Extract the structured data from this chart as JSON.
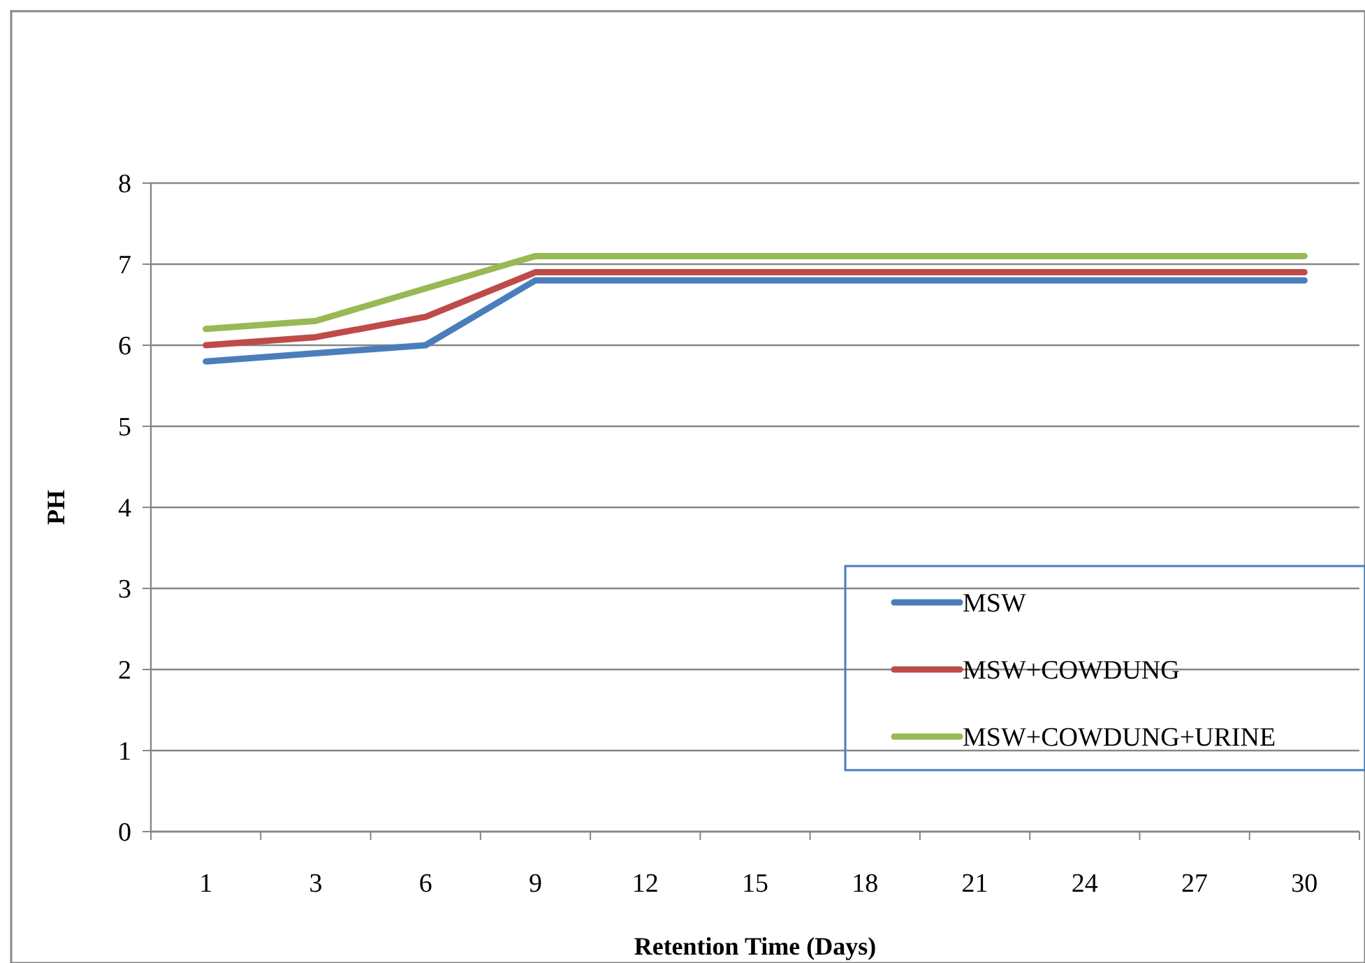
{
  "chart_data": {
    "type": "line",
    "xlabel": "Retention Time (Days)",
    "ylabel": "PH",
    "categories": [
      "1",
      "3",
      "6",
      "9",
      "12",
      "15",
      "18",
      "21",
      "24",
      "27",
      "30"
    ],
    "series": [
      {
        "name": "MSW",
        "color": "#4a7ebb",
        "values": [
          5.8,
          5.9,
          6.0,
          6.8,
          6.8,
          6.8,
          6.8,
          6.8,
          6.8,
          6.8,
          6.8
        ]
      },
      {
        "name": "MSW+COWDUNG",
        "color": "#be4b48",
        "values": [
          6.0,
          6.1,
          6.35,
          6.9,
          6.9,
          6.9,
          6.9,
          6.9,
          6.9,
          6.9,
          6.9
        ]
      },
      {
        "name": "MSW+COWDUNG+URINE",
        "color": "#98b954",
        "values": [
          6.2,
          6.3,
          6.7,
          7.1,
          7.1,
          7.1,
          7.1,
          7.1,
          7.1,
          7.1,
          7.1
        ]
      }
    ],
    "ylim": [
      0,
      8
    ],
    "yticks": [
      0,
      1,
      2,
      3,
      4,
      5,
      6,
      7,
      8
    ],
    "grid": "y",
    "legend": "bottom right",
    "marker": "none",
    "line_style": "solid"
  }
}
